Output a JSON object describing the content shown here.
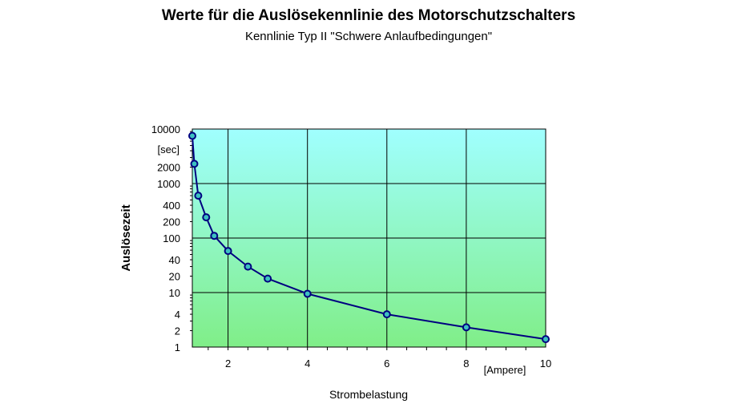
{
  "chart_data": {
    "type": "line",
    "title": "Werte für die Auslösekennlinie des Motorschutzschalters",
    "subtitle": "Kennlinie Typ II \"Schwere Anlaufbedingungen\"",
    "xlabel": "Strombelastung",
    "ylabel": "Auslösezeit",
    "x_unit": "[Ampere]",
    "y_unit": "[sec]",
    "x_scale": "linear",
    "y_scale": "log",
    "xlim": [
      1.1,
      10
    ],
    "ylim": [
      1,
      10000
    ],
    "x_tick_labels": [
      "2",
      "4",
      "6",
      "8",
      "10"
    ],
    "y_tick_labels": [
      "10000",
      "2000",
      "1000",
      "400",
      "200",
      "100",
      "40",
      "20",
      "10",
      "4",
      "2",
      "1"
    ],
    "grid": true,
    "series": [
      {
        "x": [
          1.1,
          1.15,
          1.25,
          1.45,
          1.65,
          2,
          2.5,
          3,
          4,
          6,
          8,
          10
        ],
        "values": [
          7500,
          2300,
          600,
          240,
          110,
          58,
          30,
          18,
          9.5,
          4,
          2.3,
          1.4
        ]
      }
    ],
    "colors": {
      "line": "#000080",
      "marker_fill": "#3cc0c0",
      "plot_top": "#a0ffff",
      "plot_bottom": "#80ee88",
      "grid": "#000000"
    }
  }
}
